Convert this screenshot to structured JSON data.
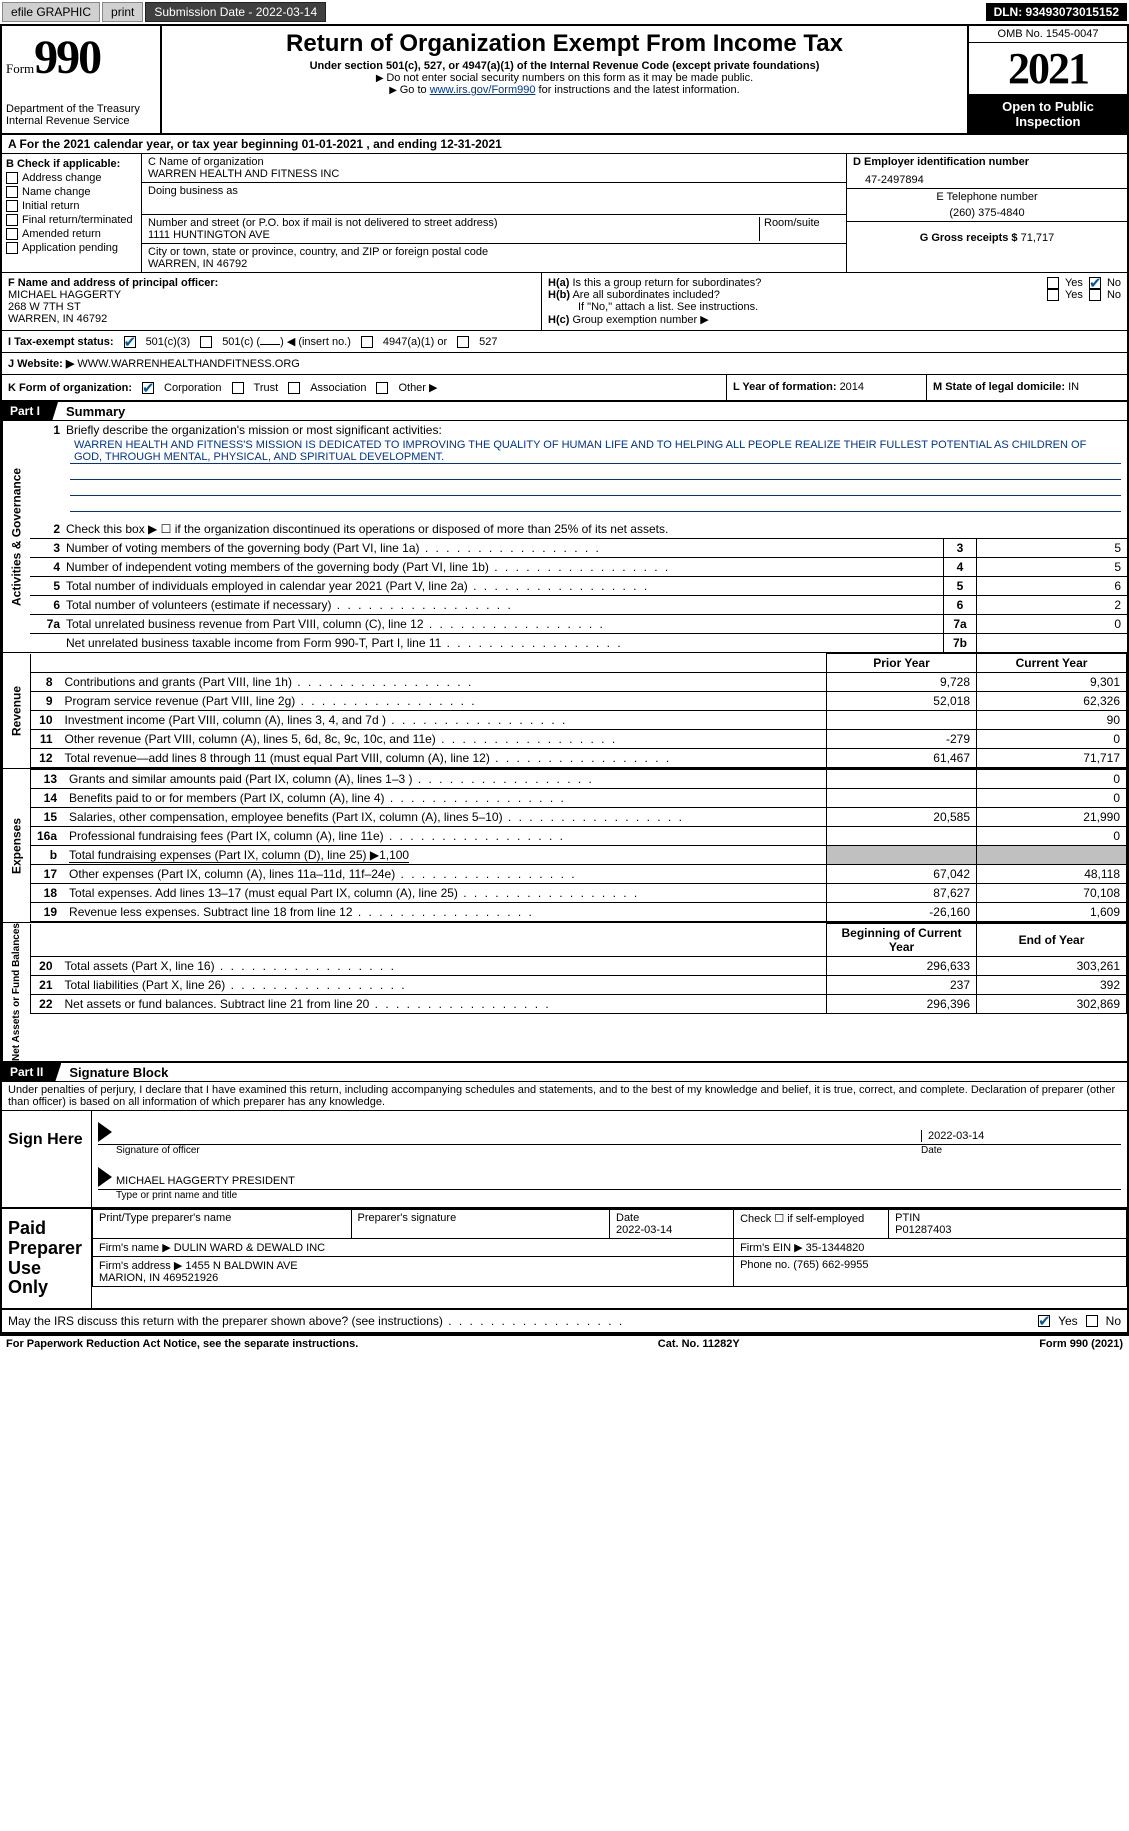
{
  "topbar": {
    "efile": "efile GRAPHIC",
    "print": "print",
    "submission_label": "Submission Date - ",
    "submission_date": "2022-03-14",
    "dln": "DLN: 93493073015152"
  },
  "header": {
    "form_word": "Form",
    "form_number": "990",
    "dept": "Department of the Treasury\nInternal Revenue Service",
    "title": "Return of Organization Exempt From Income Tax",
    "sub": "Under section 501(c), 527, or 4947(a)(1) of the Internal Revenue Code (except private foundations)",
    "note1": "Do not enter social security numbers on this form as it may be made public.",
    "note2_pre": "Go to ",
    "note2_link": "www.irs.gov/Form990",
    "note2_post": " for instructions and the latest information.",
    "omb": "OMB No. 1545-0047",
    "year": "2021",
    "inspect": "Open to Public Inspection"
  },
  "row_a": {
    "pre": "A For the 2021 calendar year, or tax year beginning ",
    "begin": "01-01-2021",
    "mid": "   , and ending ",
    "end": "12-31-2021"
  },
  "section_b": {
    "label": "B Check if applicable:",
    "items": [
      "Address change",
      "Name change",
      "Initial return",
      "Final return/terminated",
      "Amended return",
      "Application pending"
    ]
  },
  "section_c": {
    "name_label": "C Name of organization",
    "name": "WARREN HEALTH AND FITNESS INC",
    "dba_label": "Doing business as",
    "dba": "",
    "street_label": "Number and street (or P.O. box if mail is not delivered to street address)",
    "street": "1111 HUNTINGTON AVE",
    "room_label": "Room/suite",
    "city_label": "City or town, state or province, country, and ZIP or foreign postal code",
    "city": "WARREN, IN  46792"
  },
  "section_d": {
    "ein_label": "D Employer identification number",
    "ein": "47-2497894",
    "phone_label": "E Telephone number",
    "phone": "(260) 375-4840",
    "gross_label": "G Gross receipts $ ",
    "gross": "71,717"
  },
  "section_f": {
    "label": "F  Name and address of principal officer:",
    "name": "MICHAEL HAGGERTY",
    "street": "268 W 7TH ST",
    "city": "WARREN, IN  46792"
  },
  "section_h": {
    "a_label": "H(a)  Is this a group return for subordinates?",
    "a_yes": "Yes",
    "a_no": "No",
    "b_label": "H(b)  Are all subordinates included?",
    "b_yes": "Yes",
    "b_no": "No",
    "b_note": "If \"No,\" attach a list. See instructions.",
    "c_label": "H(c)  Group exemption number ▶"
  },
  "row_i": {
    "label": "I  Tax-exempt status:",
    "opt1": "501(c)(3)",
    "opt2_pre": "501(c) (",
    "opt2_post": ") ◀ (insert no.)",
    "opt3": "4947(a)(1) or",
    "opt4": "527"
  },
  "row_j": {
    "label": "J  Website: ▶",
    "value": " WWW.WARRENHEALTHANDFITNESS.ORG"
  },
  "row_k": {
    "label": "K Form of organization:",
    "opts": [
      "Corporation",
      "Trust",
      "Association",
      "Other ▶"
    ],
    "l_label": "L Year of formation: ",
    "l_val": "2014",
    "m_label": "M State of legal domicile: ",
    "m_val": "IN"
  },
  "part1": {
    "tab": "Part I",
    "title": "Summary",
    "side1": "Activities & Governance",
    "side2": "Revenue",
    "side3": "Expenses",
    "side4": "Net Assets or Fund Balances",
    "q1_label": "Briefly describe the organization's mission or most significant activities:",
    "q1_text": "WARREN HEALTH AND FITNESS'S MISSION IS DEDICATED TO IMPROVING THE QUALITY OF HUMAN LIFE AND TO HELPING ALL PEOPLE REALIZE THEIR FULLEST POTENTIAL AS CHILDREN OF GOD, THROUGH MENTAL, PHYSICAL, AND SPIRITUAL DEVELOPMENT.",
    "q2": "Check this box ▶ ☐ if the organization discontinued its operations or disposed of more than 25% of its net assets.",
    "lines_gov": [
      {
        "n": "3",
        "t": "Number of voting members of the governing body (Part VI, line 1a)",
        "box": "3",
        "v": "5"
      },
      {
        "n": "4",
        "t": "Number of independent voting members of the governing body (Part VI, line 1b)",
        "box": "4",
        "v": "5"
      },
      {
        "n": "5",
        "t": "Total number of individuals employed in calendar year 2021 (Part V, line 2a)",
        "box": "5",
        "v": "6"
      },
      {
        "n": "6",
        "t": "Total number of volunteers (estimate if necessary)",
        "box": "6",
        "v": "2"
      },
      {
        "n": "7a",
        "t": "Total unrelated business revenue from Part VIII, column (C), line 12",
        "box": "7a",
        "v": "0"
      },
      {
        "n": "",
        "t": "Net unrelated business taxable income from Form 990-T, Part I, line 11",
        "box": "7b",
        "v": ""
      }
    ],
    "col_prior": "Prior Year",
    "col_current": "Current Year",
    "col_begin": "Beginning of Current Year",
    "col_end": "End of Year",
    "rev_lines": [
      {
        "n": "8",
        "t": "Contributions and grants (Part VIII, line 1h)",
        "p": "9,728",
        "c": "9,301"
      },
      {
        "n": "9",
        "t": "Program service revenue (Part VIII, line 2g)",
        "p": "52,018",
        "c": "62,326"
      },
      {
        "n": "10",
        "t": "Investment income (Part VIII, column (A), lines 3, 4, and 7d )",
        "p": "",
        "c": "90"
      },
      {
        "n": "11",
        "t": "Other revenue (Part VIII, column (A), lines 5, 6d, 8c, 9c, 10c, and 11e)",
        "p": "-279",
        "c": "0"
      },
      {
        "n": "12",
        "t": "Total revenue—add lines 8 through 11 (must equal Part VIII, column (A), line 12)",
        "p": "61,467",
        "c": "71,717"
      }
    ],
    "exp_lines": [
      {
        "n": "13",
        "t": "Grants and similar amounts paid (Part IX, column (A), lines 1–3 )",
        "p": "",
        "c": "0"
      },
      {
        "n": "14",
        "t": "Benefits paid to or for members (Part IX, column (A), line 4)",
        "p": "",
        "c": "0"
      },
      {
        "n": "15",
        "t": "Salaries, other compensation, employee benefits (Part IX, column (A), lines 5–10)",
        "p": "20,585",
        "c": "21,990"
      },
      {
        "n": "16a",
        "t": "Professional fundraising fees (Part IX, column (A), line 11e)",
        "p": "",
        "c": "0"
      },
      {
        "n": "b",
        "t": "Total fundraising expenses (Part IX, column (D), line 25) ▶1,100",
        "gray": true
      },
      {
        "n": "17",
        "t": "Other expenses (Part IX, column (A), lines 11a–11d, 11f–24e)",
        "p": "67,042",
        "c": "48,118"
      },
      {
        "n": "18",
        "t": "Total expenses. Add lines 13–17 (must equal Part IX, column (A), line 25)",
        "p": "87,627",
        "c": "70,108"
      },
      {
        "n": "19",
        "t": "Revenue less expenses. Subtract line 18 from line 12",
        "p": "-26,160",
        "c": "1,609"
      }
    ],
    "net_lines": [
      {
        "n": "20",
        "t": "Total assets (Part X, line 16)",
        "p": "296,633",
        "c": "303,261"
      },
      {
        "n": "21",
        "t": "Total liabilities (Part X, line 26)",
        "p": "237",
        "c": "392"
      },
      {
        "n": "22",
        "t": "Net assets or fund balances. Subtract line 21 from line 20",
        "p": "296,396",
        "c": "302,869"
      }
    ]
  },
  "part2": {
    "tab": "Part II",
    "title": "Signature Block",
    "decl": "Under penalties of perjury, I declare that I have examined this return, including accompanying schedules and statements, and to the best of my knowledge and belief, it is true, correct, and complete. Declaration of preparer (other than officer) is based on all information of which preparer has any knowledge.",
    "sign_here": "Sign Here",
    "sig_officer": "Signature of officer",
    "sig_date": "Date",
    "sig_date_val": "2022-03-14",
    "sig_name": "MICHAEL HAGGERTY PRESIDENT",
    "sig_name_label": "Type or print name and title",
    "paid": "Paid Preparer Use Only",
    "prep_name_label": "Print/Type preparer's name",
    "prep_sig_label": "Preparer's signature",
    "prep_date_label": "Date",
    "prep_date": "2022-03-14",
    "prep_self": "Check ☐ if self-employed",
    "ptin_label": "PTIN",
    "ptin": "P01287403",
    "firm_name_label": "Firm's name      ▶ ",
    "firm_name": "DULIN WARD & DEWALD INC",
    "firm_ein_label": "Firm's EIN ▶ ",
    "firm_ein": "35-1344820",
    "firm_addr_label": "Firm's address ▶ ",
    "firm_addr": "1455 N BALDWIN AVE\nMARION, IN  469521926",
    "firm_phone_label": "Phone no. ",
    "firm_phone": "(765) 662-9955",
    "discuss": "May the IRS discuss this return with the preparer shown above? (see instructions)",
    "yes": "Yes",
    "no": "No"
  },
  "footer": {
    "left": "For Paperwork Reduction Act Notice, see the separate instructions.",
    "mid": "Cat. No. 11282Y",
    "right": "Form 990 (2021)"
  }
}
